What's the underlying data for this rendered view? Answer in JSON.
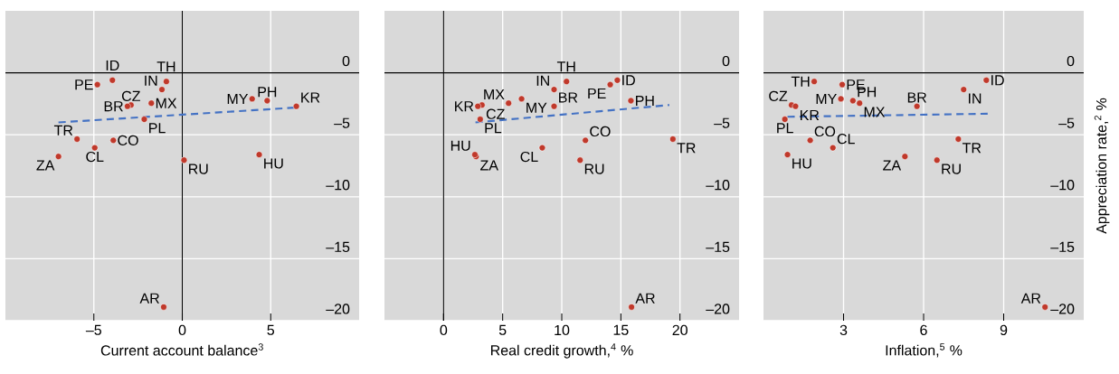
{
  "chart_data": [
    {
      "type": "scatter",
      "xlabel": "Current account balance$^{3}$",
      "xlim": [
        -10,
        10
      ],
      "ylim": [
        -20,
        5
      ],
      "xticks": [
        {
          "value": -5,
          "label": "–5"
        },
        0,
        5
      ],
      "yticks": [
        {
          "value": -20,
          "label": "–20"
        },
        {
          "value": -15,
          "label": "–15"
        },
        {
          "value": -10,
          "label": "–10"
        },
        {
          "value": -5,
          "label": "–5"
        },
        0
      ],
      "grid": true,
      "series": [
        {
          "color": "#c0392b",
          "marker": "circle",
          "x": [
            -3.95,
            -4.8,
            -0.9,
            -1.15,
            -2.9,
            -3.1,
            -1.75,
            -2.15,
            3.95,
            4.8,
            6.45,
            -5.95,
            -3.9,
            -4.95,
            -7.0,
            0.1,
            4.35,
            -1.05
          ],
          "values": [
            -0.6,
            -0.95,
            -0.7,
            -1.35,
            -2.6,
            -2.7,
            -2.45,
            -3.75,
            -2.1,
            -2.25,
            -2.7,
            -5.35,
            -5.45,
            -6.05,
            -6.75,
            -7.05,
            -6.6,
            -18.9
          ]
        },
        {
          "type": "line",
          "color": "#4472c4",
          "marker": "none",
          "line_style": "dashed",
          "x": [
            -7.0,
            6.45
          ],
          "values": [
            -4.0,
            -2.8
          ]
        }
      ],
      "annotations": [
        {
          "text": "ID",
          "x": -3.95,
          "y": -0.6
        },
        {
          "text": "PE",
          "x": -4.8,
          "y": -0.95
        },
        {
          "text": "TH",
          "x": -0.9,
          "y": -0.7
        },
        {
          "text": "IN",
          "x": -1.15,
          "y": -1.35
        },
        {
          "text": "CZ",
          "x": -2.9,
          "y": -2.6
        },
        {
          "text": "BR",
          "x": -3.1,
          "y": -2.7
        },
        {
          "text": "MX",
          "x": -1.75,
          "y": -2.45
        },
        {
          "text": "PL",
          "x": -2.15,
          "y": -3.75
        },
        {
          "text": "MY",
          "x": 3.95,
          "y": -2.1
        },
        {
          "text": "PH",
          "x": 4.8,
          "y": -2.25
        },
        {
          "text": "KR",
          "x": 6.45,
          "y": -2.7
        },
        {
          "text": "TR",
          "x": -5.95,
          "y": -5.35
        },
        {
          "text": "CO",
          "x": -3.9,
          "y": -5.45
        },
        {
          "text": "CL",
          "x": -4.95,
          "y": -6.05
        },
        {
          "text": "ZA",
          "x": -7.0,
          "y": -6.75
        },
        {
          "text": "RU",
          "x": 0.1,
          "y": -7.05
        },
        {
          "text": "HU",
          "x": 4.35,
          "y": -6.6
        },
        {
          "text": "AR",
          "x": -1.05,
          "y": -18.9
        }
      ]
    },
    {
      "type": "scatter",
      "xlabel": "Real credit growth,$^{4}$ %",
      "xlim": [
        -5,
        25
      ],
      "ylim": [
        -20,
        5
      ],
      "xticks": [
        0,
        5,
        10,
        15,
        20
      ],
      "yticks": [
        {
          "value": -20,
          "label": "–20"
        },
        {
          "value": -15,
          "label": "–15"
        },
        {
          "value": -10,
          "label": "–10"
        },
        {
          "value": -5,
          "label": "–5"
        },
        0
      ],
      "grid": true,
      "series": [
        {
          "color": "#c0392b",
          "marker": "circle",
          "x": [
            14.7,
            14.1,
            10.4,
            9.35,
            3.25,
            9.35,
            5.5,
            3.1,
            6.6,
            15.85,
            2.9,
            19.4,
            12.0,
            8.35,
            2.75,
            11.55,
            2.65,
            15.9
          ],
          "values": [
            -0.6,
            -0.95,
            -0.7,
            -1.35,
            -2.6,
            -2.7,
            -2.45,
            -3.75,
            -2.1,
            -2.25,
            -2.7,
            -5.35,
            -5.45,
            -6.05,
            -6.75,
            -7.05,
            -6.6,
            -18.9
          ]
        },
        {
          "type": "line",
          "color": "#4472c4",
          "marker": "none",
          "line_style": "dashed",
          "x": [
            2.7,
            19.1
          ],
          "values": [
            -4.0,
            -2.6
          ]
        }
      ],
      "annotations": [
        {
          "text": "ID",
          "x": 14.7,
          "y": -0.6
        },
        {
          "text": "PE",
          "x": 14.1,
          "y": -0.95
        },
        {
          "text": "TH",
          "x": 10.4,
          "y": -0.7
        },
        {
          "text": "IN",
          "x": 9.35,
          "y": -1.35
        },
        {
          "text": "CZ",
          "x": 3.25,
          "y": -2.6
        },
        {
          "text": "BR",
          "x": 9.35,
          "y": -2.7
        },
        {
          "text": "MX",
          "x": 5.5,
          "y": -2.45
        },
        {
          "text": "PL",
          "x": 3.1,
          "y": -3.75
        },
        {
          "text": "MY",
          "x": 6.6,
          "y": -2.1
        },
        {
          "text": "PH",
          "x": 15.85,
          "y": -2.25
        },
        {
          "text": "KR",
          "x": 2.9,
          "y": -2.7
        },
        {
          "text": "TR",
          "x": 19.4,
          "y": -5.35
        },
        {
          "text": "CO",
          "x": 12.0,
          "y": -5.45
        },
        {
          "text": "CL",
          "x": 8.35,
          "y": -6.05
        },
        {
          "text": "ZA",
          "x": 2.75,
          "y": -6.75
        },
        {
          "text": "RU",
          "x": 11.55,
          "y": -7.05
        },
        {
          "text": "HU",
          "x": 2.65,
          "y": -6.6
        },
        {
          "text": "AR",
          "x": 15.9,
          "y": -18.9
        }
      ]
    },
    {
      "type": "scatter",
      "xlabel": "Inflation,$^{5}$ %",
      "ylabel": "Appreciation rate,$^{2}$ %",
      "xlim": [
        0,
        12
      ],
      "ylim": [
        -20,
        5
      ],
      "xticks": [
        3,
        6,
        9
      ],
      "yticks": [
        {
          "value": -20,
          "label": "–20"
        },
        {
          "value": -15,
          "label": "–15"
        },
        {
          "value": -10,
          "label": "–10"
        },
        {
          "value": -5,
          "label": "–5"
        },
        0
      ],
      "grid": true,
      "series": [
        {
          "color": "#c0392b",
          "marker": "circle",
          "x": [
            8.35,
            2.95,
            1.9,
            7.5,
            1.05,
            5.75,
            3.6,
            0.8,
            2.9,
            3.35,
            1.2,
            7.3,
            1.75,
            2.6,
            5.3,
            6.5,
            0.9,
            10.55
          ],
          "values": [
            -0.6,
            -0.95,
            -0.7,
            -1.35,
            -2.6,
            -2.7,
            -2.45,
            -3.75,
            -2.1,
            -2.25,
            -2.7,
            -5.35,
            -5.45,
            -6.05,
            -6.75,
            -7.05,
            -6.6,
            -18.9
          ]
        },
        {
          "type": "line",
          "color": "#4472c4",
          "marker": "none",
          "line_style": "dashed",
          "x": [
            0.9,
            8.4
          ],
          "values": [
            -3.55,
            -3.3
          ]
        }
      ],
      "annotations": [
        {
          "text": "ID",
          "x": 8.35,
          "y": -0.6
        },
        {
          "text": "PE",
          "x": 2.95,
          "y": -0.95
        },
        {
          "text": "TH",
          "x": 1.9,
          "y": -0.7
        },
        {
          "text": "IN",
          "x": 7.5,
          "y": -1.35
        },
        {
          "text": "CZ",
          "x": 1.05,
          "y": -2.6
        },
        {
          "text": "BR",
          "x": 5.75,
          "y": -2.7
        },
        {
          "text": "MX",
          "x": 3.6,
          "y": -2.45
        },
        {
          "text": "PL",
          "x": 0.8,
          "y": -3.75
        },
        {
          "text": "MY",
          "x": 2.9,
          "y": -2.1
        },
        {
          "text": "PH",
          "x": 3.35,
          "y": -2.25
        },
        {
          "text": "KR",
          "x": 1.2,
          "y": -2.7
        },
        {
          "text": "TR",
          "x": 7.3,
          "y": -5.35
        },
        {
          "text": "CO",
          "x": 1.75,
          "y": -5.45
        },
        {
          "text": "CL",
          "x": 2.6,
          "y": -6.05
        },
        {
          "text": "ZA",
          "x": 5.3,
          "y": -6.75
        },
        {
          "text": "RU",
          "x": 6.5,
          "y": -7.05
        },
        {
          "text": "HU",
          "x": 0.9,
          "y": -6.6
        },
        {
          "text": "AR",
          "x": 10.55,
          "y": -18.9
        }
      ]
    }
  ]
}
